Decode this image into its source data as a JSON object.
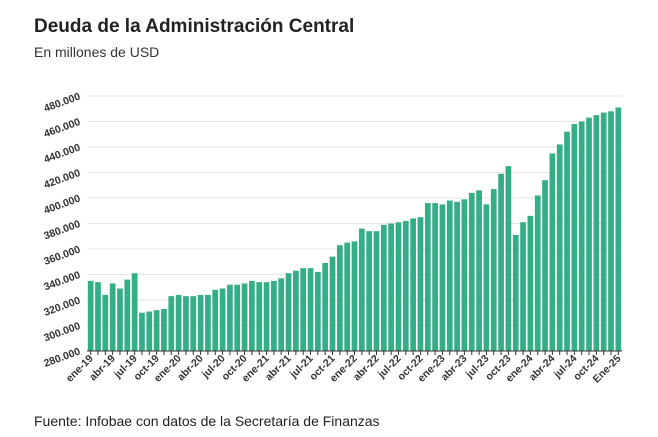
{
  "title": "Deuda de la Administración Central",
  "subtitle": "En millones de USD",
  "source": "Fuente: Infobae con datos de la Secretaría de Finanzas",
  "colors": {
    "bar": "#34ae86",
    "grid": "#e6e6e6",
    "axis": "#333333"
  },
  "chart_data": {
    "type": "bar",
    "ylim": [
      280000,
      480000
    ],
    "yticks": [
      "280.000",
      "300.000",
      "320.000",
      "340.000",
      "360.000",
      "380.000",
      "400.000",
      "420.000",
      "440.000",
      "460.000",
      "480.000"
    ],
    "ytick_values": [
      280000,
      300000,
      320000,
      340000,
      360000,
      380000,
      400000,
      420000,
      440000,
      460000,
      480000
    ],
    "xtick_labels": [
      {
        "index": 0,
        "label": "ene-19"
      },
      {
        "index": 3,
        "label": "abr-19"
      },
      {
        "index": 6,
        "label": "jul-19"
      },
      {
        "index": 9,
        "label": "oct-19"
      },
      {
        "index": 12,
        "label": "ene-20"
      },
      {
        "index": 15,
        "label": "abr-20"
      },
      {
        "index": 18,
        "label": "jul-20"
      },
      {
        "index": 21,
        "label": "oct-20"
      },
      {
        "index": 24,
        "label": "ene-21"
      },
      {
        "index": 27,
        "label": "abr-21"
      },
      {
        "index": 30,
        "label": "jul-21"
      },
      {
        "index": 33,
        "label": "oct-21"
      },
      {
        "index": 36,
        "label": "ene-22"
      },
      {
        "index": 39,
        "label": "abr-22"
      },
      {
        "index": 42,
        "label": "jul-22"
      },
      {
        "index": 45,
        "label": "oct-22"
      },
      {
        "index": 48,
        "label": "ene-23"
      },
      {
        "index": 51,
        "label": "abr-23"
      },
      {
        "index": 54,
        "label": "jul-23"
      },
      {
        "index": 57,
        "label": "oct-23"
      },
      {
        "index": 60,
        "label": "ene-24"
      },
      {
        "index": 63,
        "label": "abr-24"
      },
      {
        "index": 66,
        "label": "jul-24"
      },
      {
        "index": 69,
        "label": "oct-24"
      },
      {
        "index": 72,
        "label": "Ene-25"
      }
    ],
    "values": [
      335000,
      334000,
      324000,
      333000,
      329000,
      336000,
      341000,
      310000,
      311000,
      312000,
      313000,
      323000,
      324000,
      323000,
      323000,
      324000,
      324000,
      328000,
      329000,
      332000,
      332000,
      333000,
      335000,
      334000,
      334000,
      335000,
      337000,
      341000,
      343000,
      345000,
      345000,
      342000,
      349000,
      354000,
      363000,
      365000,
      366000,
      376000,
      374000,
      374000,
      379000,
      380000,
      381000,
      382000,
      384000,
      385000,
      396000,
      396000,
      395000,
      398000,
      397000,
      399000,
      404000,
      406000,
      395000,
      407000,
      419000,
      425000,
      371000,
      381000,
      386000,
      402000,
      414000,
      435000,
      442000,
      452000,
      458000,
      460000,
      463000,
      465000,
      467000,
      468000,
      471000
    ]
  }
}
